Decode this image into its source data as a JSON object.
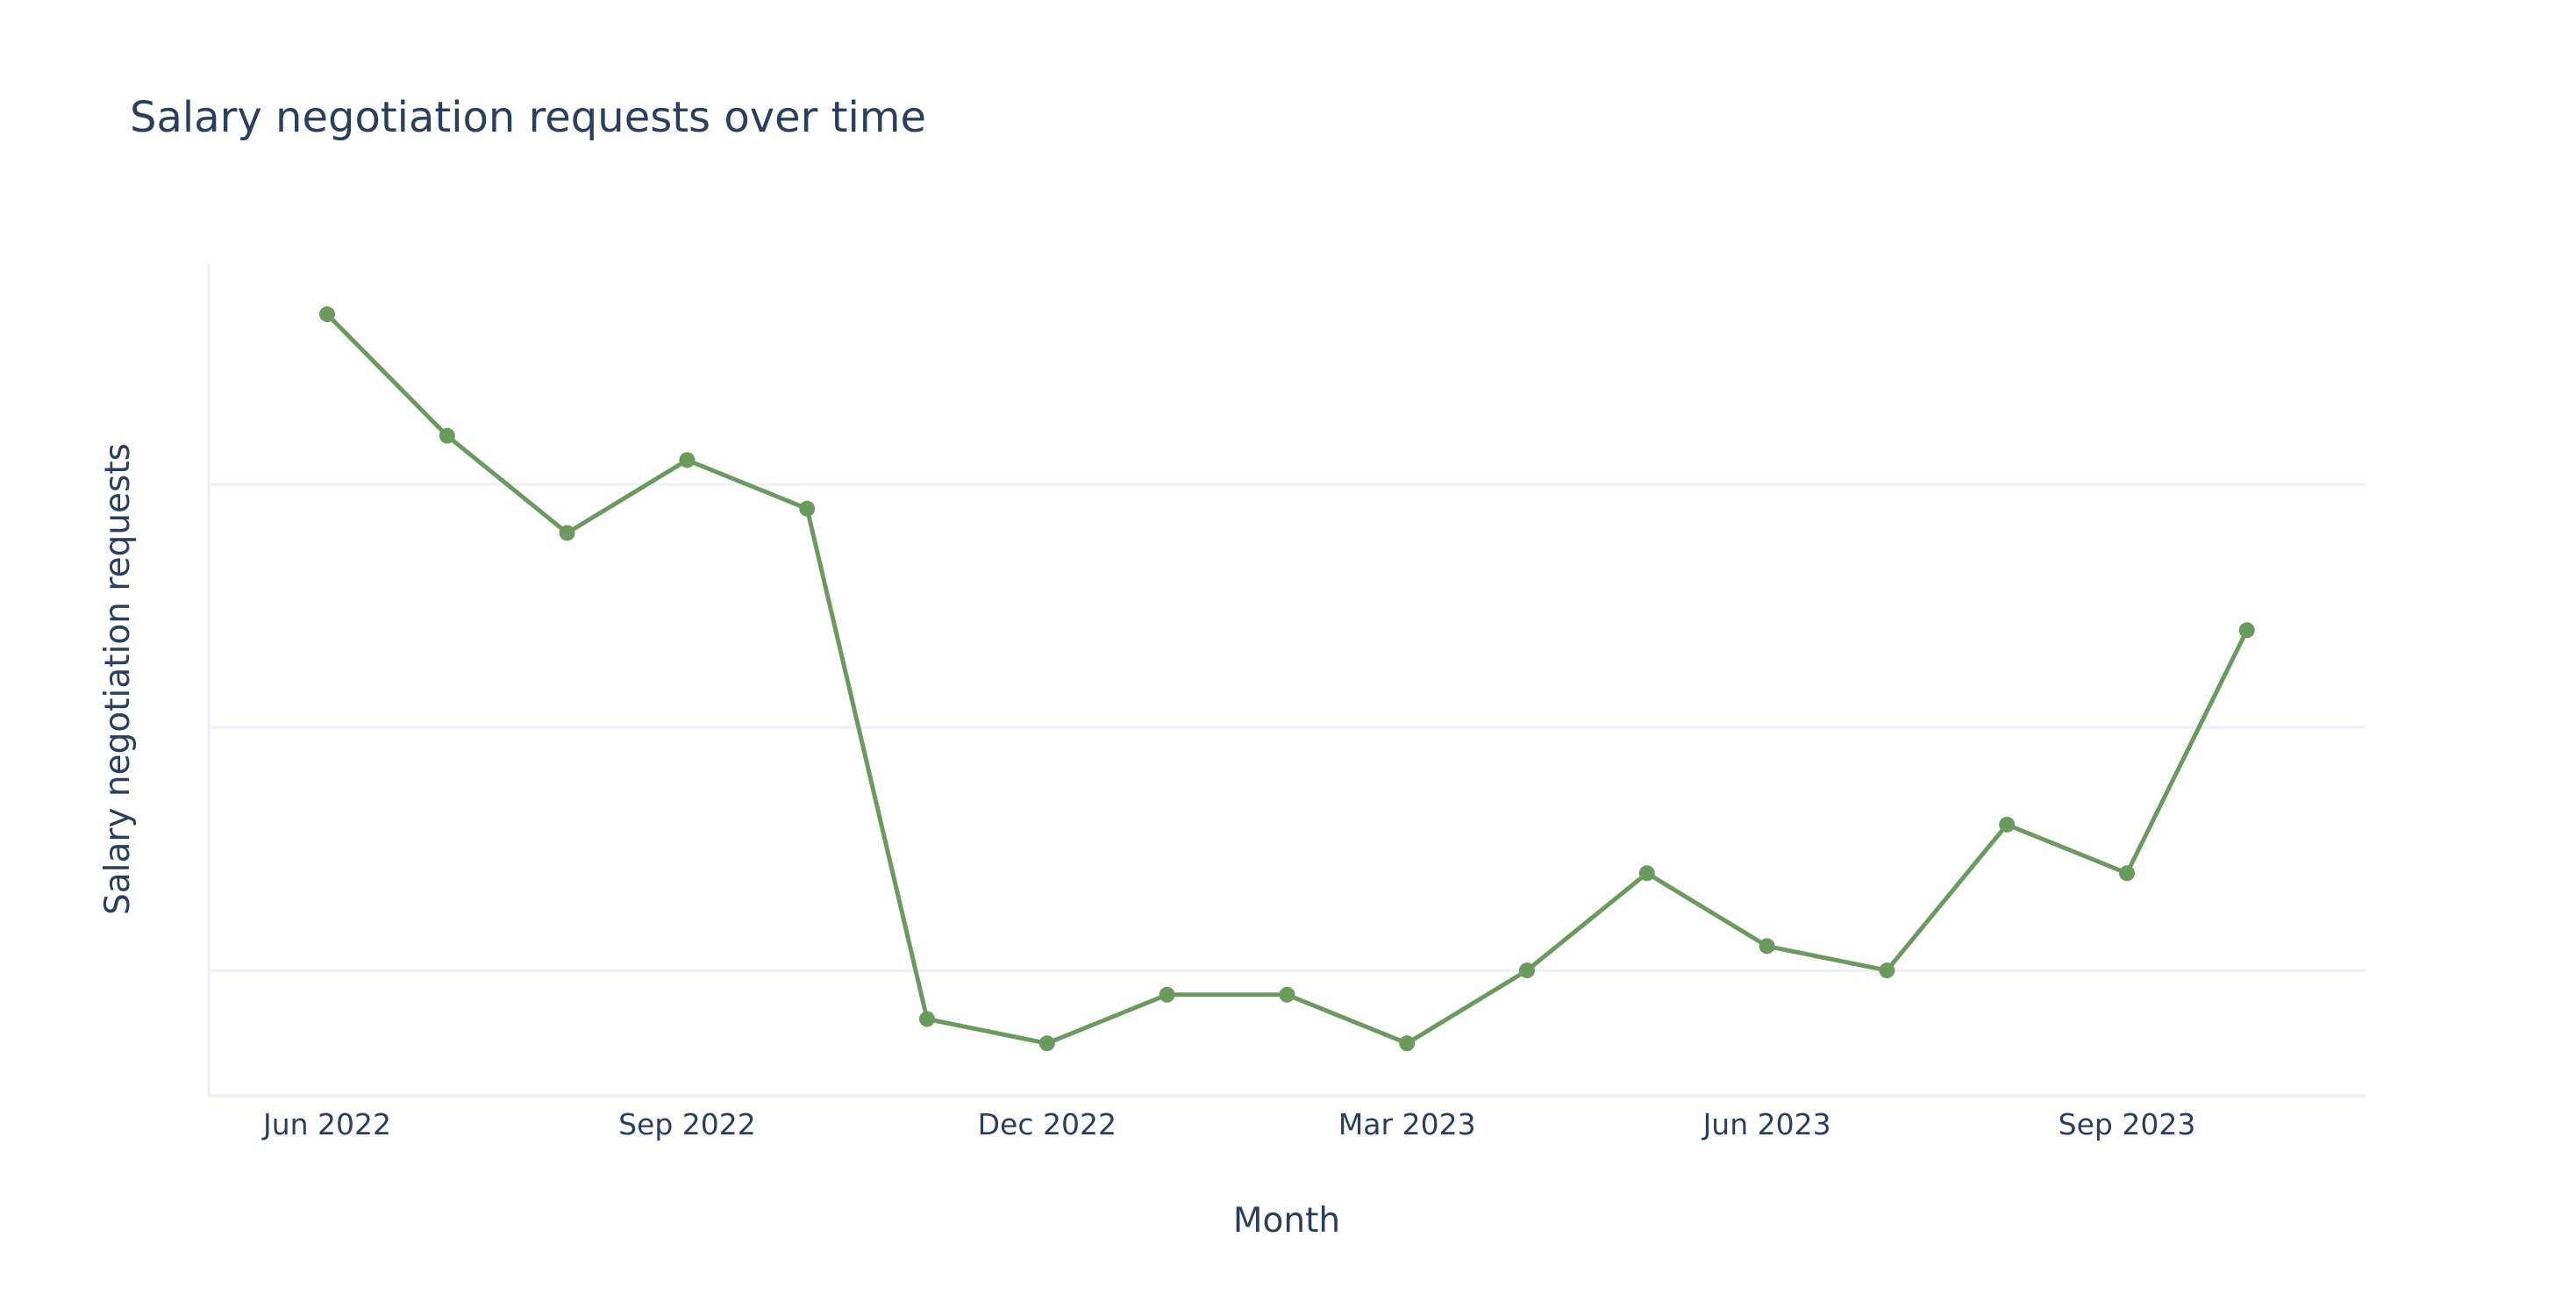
{
  "chart_data": {
    "type": "line",
    "title": "Salary negotiation requests over time",
    "xlabel": "Month",
    "ylabel": "Salary negotiation requests",
    "x": [
      "Jun 2022",
      "Jul 2022",
      "Aug 2022",
      "Sep 2022",
      "Oct 2022",
      "Nov 2022",
      "Dec 2022",
      "Jan 2023",
      "Feb 2023",
      "Mar 2023",
      "Apr 2023",
      "May 2023",
      "Jun 2023",
      "Jul 2023",
      "Aug 2023",
      "Sep 2023",
      "Oct 2023"
    ],
    "series": [
      {
        "name": "Salary negotiation requests",
        "color": "#6a9a5e",
        "mode": "lines+markers",
        "values": [
          37,
          32,
          28,
          31,
          29,
          8,
          7,
          9,
          9,
          7,
          10,
          14,
          11,
          10,
          16,
          14,
          24
        ]
      }
    ],
    "xticks": [
      "Jun 2022",
      "Sep 2022",
      "Dec 2022",
      "Mar 2023",
      "Jun 2023",
      "Sep 2023"
    ],
    "xtick_indices": [
      0,
      3,
      6,
      9,
      12,
      15
    ],
    "ylim": [
      4.84,
      39.1
    ],
    "y_gridlines": [
      10,
      20,
      30
    ],
    "y_tick_labels_visible": false,
    "grid": true,
    "legend": "none"
  },
  "colors": {
    "text": "#2a3f5f",
    "grid": "#ebf0f8",
    "line": "#6a9a5e",
    "background": "#ffffff"
  }
}
